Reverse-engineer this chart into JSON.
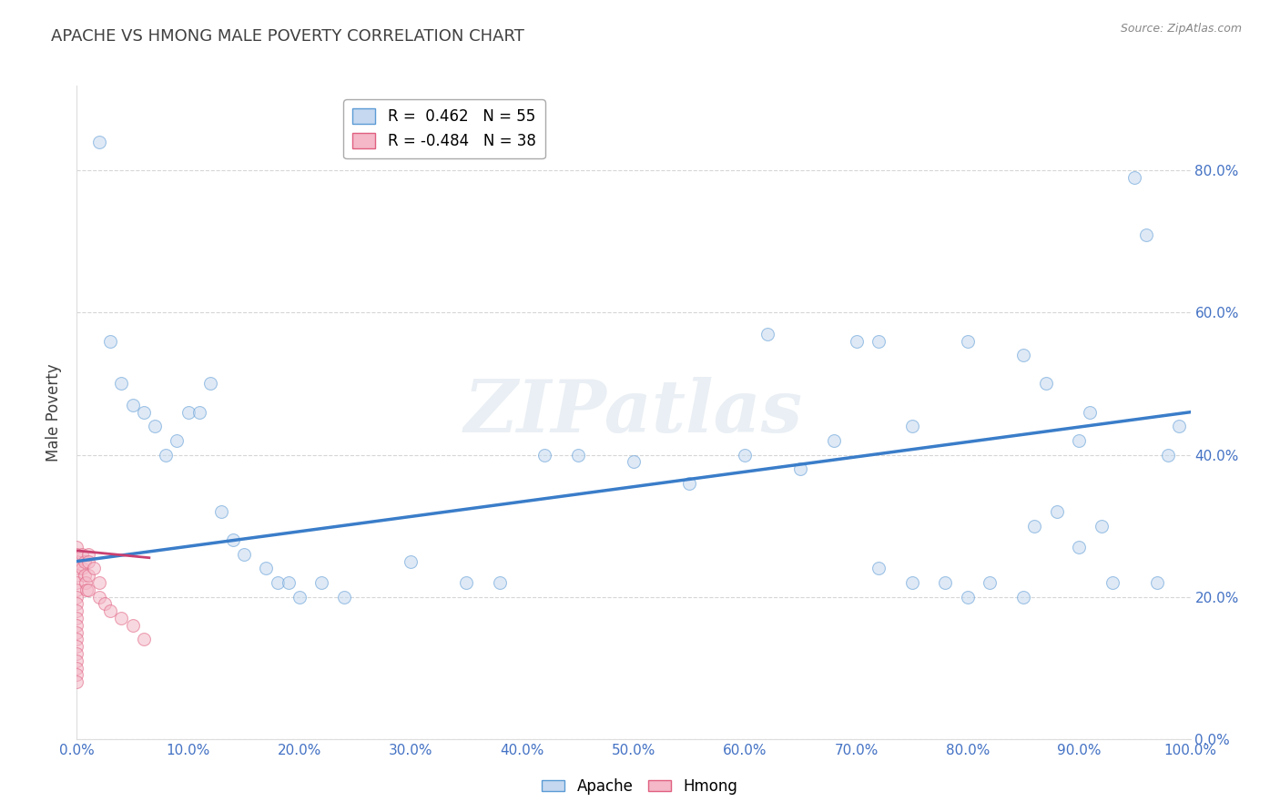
{
  "title": "APACHE VS HMONG MALE POVERTY CORRELATION CHART",
  "source": "Source: ZipAtlas.com",
  "ylabel": "Male Poverty",
  "watermark": "ZIPatlas",
  "legend_apache_R": 0.462,
  "legend_apache_N": 55,
  "legend_hmong_R": -0.484,
  "legend_hmong_N": 38,
  "apache_x": [
    0.02,
    0.03,
    0.04,
    0.05,
    0.06,
    0.07,
    0.08,
    0.09,
    0.1,
    0.11,
    0.12,
    0.13,
    0.14,
    0.15,
    0.17,
    0.18,
    0.19,
    0.2,
    0.22,
    0.24,
    0.3,
    0.35,
    0.38,
    0.55,
    0.72,
    0.75,
    0.78,
    0.8,
    0.82,
    0.85,
    0.86,
    0.88,
    0.9,
    0.92,
    0.93,
    0.95,
    0.96,
    0.97,
    0.98,
    0.99,
    0.8,
    0.91,
    0.85,
    0.87,
    0.62,
    0.7,
    0.72,
    0.9,
    0.65,
    0.42,
    0.45,
    0.5,
    0.6,
    0.68,
    0.75
  ],
  "apache_y": [
    0.84,
    0.56,
    0.5,
    0.47,
    0.46,
    0.44,
    0.4,
    0.42,
    0.46,
    0.46,
    0.5,
    0.32,
    0.28,
    0.26,
    0.24,
    0.22,
    0.22,
    0.2,
    0.22,
    0.2,
    0.25,
    0.22,
    0.22,
    0.36,
    0.24,
    0.22,
    0.22,
    0.2,
    0.22,
    0.2,
    0.3,
    0.32,
    0.27,
    0.3,
    0.22,
    0.79,
    0.71,
    0.22,
    0.4,
    0.44,
    0.56,
    0.46,
    0.54,
    0.5,
    0.57,
    0.56,
    0.56,
    0.42,
    0.38,
    0.4,
    0.4,
    0.39,
    0.4,
    0.42,
    0.44
  ],
  "hmong_x": [
    0.0,
    0.0,
    0.0,
    0.0,
    0.0,
    0.0,
    0.0,
    0.0,
    0.0,
    0.0,
    0.0,
    0.0,
    0.0,
    0.0,
    0.0,
    0.0,
    0.0,
    0.0,
    0.0,
    0.0,
    0.005,
    0.005,
    0.007,
    0.007,
    0.008,
    0.009,
    0.01,
    0.01,
    0.01,
    0.01,
    0.015,
    0.02,
    0.02,
    0.025,
    0.03,
    0.04,
    0.05,
    0.06
  ],
  "hmong_y": [
    0.27,
    0.26,
    0.25,
    0.24,
    0.23,
    0.22,
    0.21,
    0.2,
    0.19,
    0.18,
    0.17,
    0.16,
    0.15,
    0.14,
    0.13,
    0.12,
    0.11,
    0.1,
    0.09,
    0.08,
    0.26,
    0.24,
    0.25,
    0.23,
    0.22,
    0.21,
    0.26,
    0.25,
    0.23,
    0.21,
    0.24,
    0.22,
    0.2,
    0.19,
    0.18,
    0.17,
    0.16,
    0.14
  ],
  "apache_trendline_x0": 0.0,
  "apache_trendline_y0": 0.25,
  "apache_trendline_x1": 1.0,
  "apache_trendline_y1": 0.46,
  "hmong_trendline_x0": 0.0,
  "hmong_trendline_y0": 0.265,
  "hmong_trendline_x1": 0.065,
  "hmong_trendline_y1": 0.255,
  "apache_color": "#c5d8f0",
  "apache_edge": "#5b9bd5",
  "hmong_color": "#f4b8c8",
  "hmong_edge": "#e06080",
  "trendline_apache_color": "#3a7dc9",
  "trendline_hmong_color": "#c94070",
  "background_color": "#ffffff",
  "grid_color": "#cccccc",
  "title_color": "#404040",
  "axis_label_color": "#404040",
  "tick_color": "#4472c4",
  "xlim": [
    0.0,
    1.0
  ],
  "ylim": [
    0.0,
    0.92
  ],
  "marker_size": 100,
  "marker_alpha": 0.55,
  "watermark_color": "#d0dce8",
  "watermark_alpha": 0.45
}
